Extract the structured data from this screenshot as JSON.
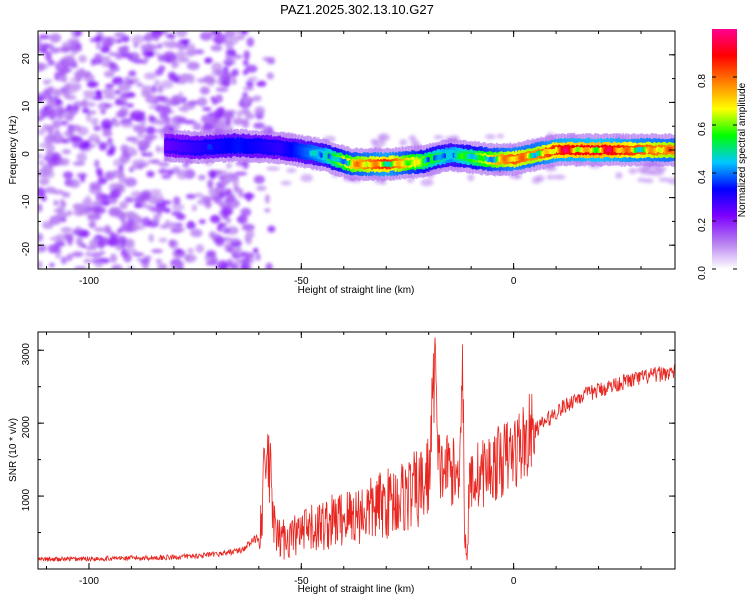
{
  "title": "PAZ1.2025.302.13.10.G27",
  "chart_data": [
    {
      "type": "heatmap",
      "xlabel": "Height of straight line (km)",
      "ylabel": "Frequency (Hz)",
      "xlim": [
        -112,
        38
      ],
      "ylim": [
        -25,
        25
      ],
      "xticks": [
        -100,
        -50,
        0
      ],
      "yticks": [
        -20,
        -10,
        0,
        10,
        20
      ],
      "colorbar": {
        "label": "Normalized spectral amplitude",
        "range": [
          0,
          1
        ],
        "ticks": [
          0.0,
          0.2,
          0.4,
          0.6,
          0.8
        ],
        "colormap": [
          "#ffffff",
          "#b57cf0",
          "#7d00ff",
          "#0000ff",
          "#00c8ff",
          "#00ff00",
          "#ffff00",
          "#ff8000",
          "#ff0000",
          "#ff0090"
        ]
      },
      "ridge_frequency": {
        "x": [
          -82,
          -75,
          -65,
          -55,
          -45,
          -38,
          -30,
          -22,
          -15,
          -10,
          -5,
          0,
          5,
          10,
          20,
          30,
          38
        ],
        "y": [
          1,
          0.5,
          1,
          0.5,
          -1,
          -3,
          -3,
          -2.5,
          -1,
          -1.5,
          -2,
          -2,
          -1,
          0,
          0,
          0,
          0
        ],
        "amplitude": [
          0.25,
          0.3,
          0.35,
          0.3,
          0.45,
          0.7,
          0.85,
          0.6,
          0.45,
          0.55,
          0.7,
          0.8,
          0.75,
          0.85,
          0.9,
          0.8,
          0.75
        ]
      }
    },
    {
      "type": "line",
      "xlabel": "Height of straight line (km)",
      "ylabel": "SNR (10 * v/v)",
      "xlim": [
        -112,
        38
      ],
      "ylim": [
        0,
        3250
      ],
      "xticks": [
        -100,
        -50,
        0
      ],
      "yticks": [
        1000,
        2000,
        3000
      ],
      "series": [
        {
          "color": "#e8251f",
          "x": [
            -112,
            -100,
            -90,
            -80,
            -70,
            -64,
            -60,
            -58,
            -56,
            -54,
            -50,
            -45,
            -40,
            -35,
            -30,
            -25,
            -22,
            -20,
            -19,
            -18.5,
            -18,
            -17,
            -15,
            -13,
            -12,
            -11.5,
            -11,
            -10.5,
            -10,
            -8,
            -5,
            0,
            5,
            10,
            15,
            20,
            25,
            30,
            35,
            38
          ],
          "y": [
            130,
            140,
            150,
            160,
            200,
            260,
            450,
            1600,
            400,
            420,
            480,
            600,
            700,
            780,
            900,
            1020,
            1100,
            1250,
            2300,
            3220,
            1500,
            1350,
            1400,
            1200,
            3000,
            400,
            150,
            1000,
            1250,
            1300,
            1400,
            1600,
            1900,
            2150,
            2350,
            2450,
            2550,
            2620,
            2680,
            2700
          ]
        }
      ]
    }
  ]
}
